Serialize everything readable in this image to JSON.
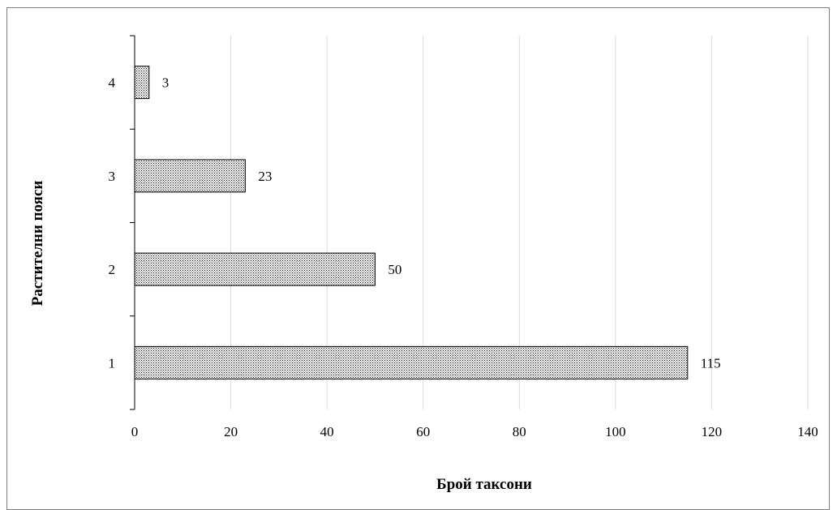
{
  "chart_data": {
    "type": "bar",
    "orientation": "horizontal",
    "categories": [
      "1",
      "2",
      "3",
      "4"
    ],
    "values": [
      115,
      50,
      23,
      3
    ],
    "xlabel": "Брой таксони",
    "ylabel": "Растителни пояси",
    "xlim": [
      0,
      140
    ],
    "xticks": [
      0,
      20,
      40,
      60,
      80,
      100,
      120,
      140
    ],
    "grid": true,
    "legend": "none",
    "colors": {
      "bar_fill": "#ffffff",
      "bar_pattern": "#000000",
      "bar_stroke": "#000000",
      "grid": "#d9d9d9",
      "axis": "#000000"
    }
  }
}
